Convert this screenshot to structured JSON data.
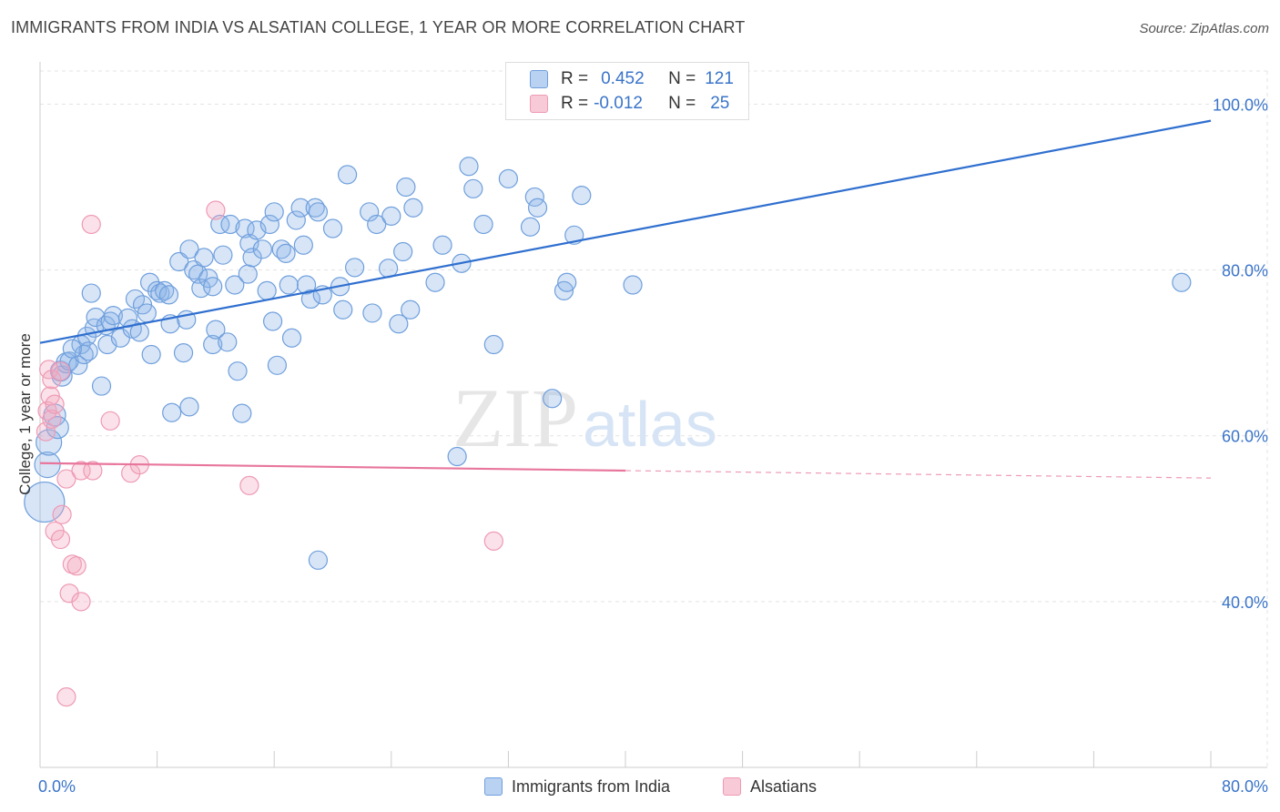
{
  "header": {
    "title": "IMMIGRANTS FROM INDIA VS ALSATIAN COLLEGE, 1 YEAR OR MORE CORRELATION CHART",
    "source": "Source: ZipAtlas.com"
  },
  "watermark": {
    "zip": "ZIP",
    "atlas": "atlas"
  },
  "legend": {
    "r_label": "R =",
    "n_label": "N =",
    "series": [
      {
        "r": "0.452",
        "n": "121",
        "color": "#5b93d9"
      },
      {
        "r": "-0.012",
        "n": "25",
        "color": "#ee8fab"
      }
    ]
  },
  "bottom_legend": [
    "Immigrants from India",
    "Alsatians"
  ],
  "chart_data": {
    "type": "scatter",
    "title": "IMMIGRANTS FROM INDIA VS ALSATIAN COLLEGE, 1 YEAR OR MORE CORRELATION CHART",
    "xlabel": "",
    "ylabel": "College, 1 year or more",
    "xlim": [
      0,
      80
    ],
    "ylim": [
      20,
      104
    ],
    "x_tick_labels": [
      "0.0%",
      "80.0%"
    ],
    "y_tick_labels": [
      "40.0%",
      "60.0%",
      "80.0%",
      "100.0%"
    ],
    "y_ticks": [
      40,
      60,
      80,
      100
    ],
    "series": [
      {
        "name": "Immigrants from India",
        "color": "#5b93d9",
        "r": 0.452,
        "n": 121,
        "trend": {
          "x": [
            0,
            80
          ],
          "y": [
            71.2,
            98.0
          ]
        },
        "points": [
          [
            0.3,
            52.0,
            22
          ],
          [
            0.5,
            56.5,
            14
          ],
          [
            0.6,
            59.2,
            14
          ],
          [
            1.0,
            62.5,
            12
          ],
          [
            1.2,
            61.0,
            12
          ],
          [
            1.4,
            67.8,
            11
          ],
          [
            1.5,
            67.2,
            11
          ],
          [
            1.8,
            68.8,
            11
          ],
          [
            2.0,
            69.0,
            10
          ],
          [
            2.6,
            68.5,
            10
          ],
          [
            2.8,
            71.0,
            10
          ],
          [
            3.0,
            69.8,
            10
          ],
          [
            3.2,
            72.0,
            10
          ],
          [
            3.3,
            70.2,
            10
          ],
          [
            3.5,
            77.2,
            10
          ],
          [
            3.7,
            73.0,
            10
          ],
          [
            3.8,
            74.3,
            10
          ],
          [
            4.2,
            66.0,
            10
          ],
          [
            4.5,
            73.3,
            10
          ],
          [
            4.8,
            73.8,
            10
          ],
          [
            4.6,
            71.0,
            10
          ],
          [
            5.0,
            74.5,
            10
          ],
          [
            5.5,
            71.8,
            10
          ],
          [
            6.0,
            74.2,
            10
          ],
          [
            6.3,
            72.9,
            10
          ],
          [
            6.5,
            76.5,
            10
          ],
          [
            6.8,
            72.5,
            10
          ],
          [
            7.0,
            75.8,
            10
          ],
          [
            7.3,
            74.8,
            10
          ],
          [
            7.5,
            78.5,
            10
          ],
          [
            7.6,
            69.8,
            10
          ],
          [
            8.0,
            77.5,
            10
          ],
          [
            8.2,
            77.2,
            10
          ],
          [
            8.5,
            77.5,
            10
          ],
          [
            8.8,
            77.0,
            10
          ],
          [
            8.9,
            73.5,
            10
          ],
          [
            9.5,
            81.0,
            10
          ],
          [
            9.0,
            62.8,
            10
          ],
          [
            9.8,
            70.0,
            10
          ],
          [
            10.0,
            74.0,
            10
          ],
          [
            10.2,
            82.5,
            10
          ],
          [
            10.5,
            80.0,
            10
          ],
          [
            10.8,
            79.5,
            10
          ],
          [
            10.2,
            63.5,
            10
          ],
          [
            11.0,
            77.8,
            10
          ],
          [
            11.2,
            81.5,
            10
          ],
          [
            11.5,
            79.0,
            10
          ],
          [
            11.8,
            78.0,
            10
          ],
          [
            11.8,
            71.0,
            10
          ],
          [
            12.0,
            72.8,
            10
          ],
          [
            12.3,
            85.5,
            10
          ],
          [
            12.5,
            81.8,
            10
          ],
          [
            12.8,
            71.3,
            10
          ],
          [
            13.0,
            85.5,
            10
          ],
          [
            13.3,
            78.2,
            10
          ],
          [
            13.5,
            67.8,
            10
          ],
          [
            13.8,
            62.7,
            10
          ],
          [
            14.0,
            85.0,
            10
          ],
          [
            14.2,
            79.5,
            10
          ],
          [
            14.3,
            83.2,
            10
          ],
          [
            14.5,
            81.5,
            10
          ],
          [
            14.8,
            84.8,
            10
          ],
          [
            15.2,
            82.5,
            10
          ],
          [
            15.5,
            77.5,
            10
          ],
          [
            15.7,
            85.5,
            10
          ],
          [
            15.9,
            73.8,
            10
          ],
          [
            16.0,
            87.0,
            10
          ],
          [
            16.2,
            68.5,
            10
          ],
          [
            16.5,
            82.5,
            10
          ],
          [
            16.8,
            82.0,
            10
          ],
          [
            17.0,
            78.2,
            10
          ],
          [
            17.2,
            71.8,
            10
          ],
          [
            17.5,
            86.0,
            10
          ],
          [
            17.8,
            87.5,
            10
          ],
          [
            18.0,
            83.0,
            10
          ],
          [
            18.2,
            78.2,
            10
          ],
          [
            18.5,
            76.5,
            10
          ],
          [
            18.8,
            87.5,
            10
          ],
          [
            19.0,
            87.0,
            10
          ],
          [
            19.3,
            77.0,
            10
          ],
          [
            19.0,
            45.0,
            10
          ],
          [
            20.0,
            85.0,
            10
          ],
          [
            20.5,
            78.0,
            10
          ],
          [
            20.7,
            75.2,
            10
          ],
          [
            21.0,
            91.5,
            10
          ],
          [
            21.5,
            80.3,
            10
          ],
          [
            22.5,
            87.0,
            10
          ],
          [
            22.7,
            74.8,
            10
          ],
          [
            23.0,
            85.5,
            10
          ],
          [
            23.8,
            80.2,
            10
          ],
          [
            24.0,
            86.5,
            10
          ],
          [
            24.5,
            73.5,
            10
          ],
          [
            24.8,
            82.2,
            10
          ],
          [
            25.0,
            90.0,
            10
          ],
          [
            25.3,
            75.2,
            10
          ],
          [
            25.5,
            87.5,
            10
          ],
          [
            27.0,
            78.5,
            10
          ],
          [
            27.5,
            83.0,
            10
          ],
          [
            28.5,
            57.5,
            10
          ],
          [
            28.8,
            80.8,
            10
          ],
          [
            29.3,
            92.5,
            10
          ],
          [
            29.6,
            89.8,
            10
          ],
          [
            30.3,
            85.5,
            10
          ],
          [
            31.0,
            71.0,
            10
          ],
          [
            32.0,
            91.0,
            10
          ],
          [
            33.5,
            85.2,
            10
          ],
          [
            33.8,
            88.8,
            10
          ],
          [
            34.0,
            87.5,
            10
          ],
          [
            35.0,
            64.5,
            10
          ],
          [
            35.8,
            77.5,
            10
          ],
          [
            36.0,
            78.5,
            10
          ],
          [
            36.5,
            84.2,
            10
          ],
          [
            37.0,
            89.0,
            10
          ],
          [
            40.5,
            78.2,
            10
          ],
          [
            78.0,
            78.5,
            10
          ],
          [
            2.2,
            70.5,
            10
          ]
        ]
      },
      {
        "name": "Alsatians",
        "color": "#ee8fab",
        "r": -0.012,
        "n": 25,
        "trend": {
          "x": [
            0,
            40
          ],
          "y": [
            56.7,
            55.8
          ]
        },
        "trend_dashed": {
          "x": [
            40,
            80
          ],
          "y": [
            55.8,
            54.9
          ]
        },
        "points": [
          [
            0.4,
            60.5,
            10
          ],
          [
            0.5,
            63.0,
            10
          ],
          [
            0.6,
            68.0,
            10
          ],
          [
            0.7,
            64.8,
            10
          ],
          [
            0.8,
            66.8,
            10
          ],
          [
            0.8,
            62.0,
            10
          ],
          [
            1.0,
            63.8,
            10
          ],
          [
            1.4,
            67.8,
            10
          ],
          [
            1.0,
            48.5,
            10
          ],
          [
            1.4,
            47.5,
            10
          ],
          [
            1.5,
            50.5,
            10
          ],
          [
            1.8,
            54.8,
            10
          ],
          [
            2.0,
            41.0,
            10
          ],
          [
            2.2,
            44.5,
            10
          ],
          [
            2.5,
            44.3,
            10
          ],
          [
            2.8,
            40.0,
            10
          ],
          [
            2.8,
            55.8,
            10
          ],
          [
            3.5,
            85.5,
            10
          ],
          [
            3.6,
            55.8,
            10
          ],
          [
            4.8,
            61.8,
            10
          ],
          [
            6.2,
            55.5,
            10
          ],
          [
            6.8,
            56.5,
            10
          ],
          [
            12.0,
            87.2,
            10
          ],
          [
            14.3,
            54.0,
            10
          ],
          [
            31.0,
            47.3,
            10
          ],
          [
            1.8,
            28.5,
            10
          ]
        ]
      }
    ]
  }
}
